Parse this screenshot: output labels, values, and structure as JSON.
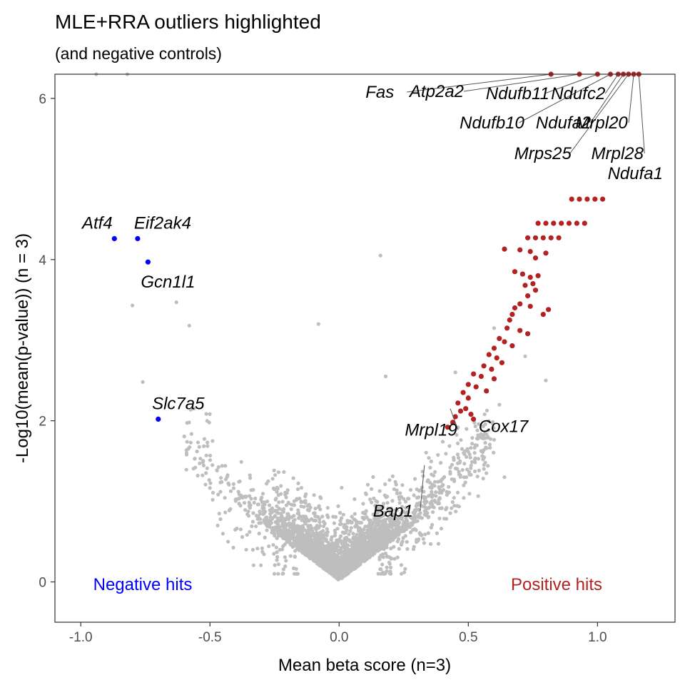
{
  "chart_data": {
    "type": "scatter",
    "title": "MLE+RRA outliers highlighted",
    "subtitle": "(and negative controls)",
    "xlabel": "Mean beta score (n=3)",
    "ylabel": "-Log10(mean(p-value)) (n = 3)",
    "xlim": [
      -1.1,
      1.3
    ],
    "ylim": [
      -0.5,
      6.3
    ],
    "x_ticks": [
      -1.0,
      -0.5,
      0.0,
      0.5,
      1.0
    ],
    "x_tick_labels": [
      "-1.0",
      "-0.5",
      "0.0",
      "0.5",
      "1.0"
    ],
    "y_ticks": [
      0,
      2,
      4,
      6
    ],
    "y_tick_labels": [
      "0",
      "2",
      "4",
      "6"
    ],
    "grid": false,
    "colors": {
      "background_points": "#bebebe",
      "positive": "#b22222",
      "negative": "#0000ff",
      "label_line": "#555555"
    },
    "region_labels": [
      {
        "text": "Negative hits",
        "color": "#0000ff"
      },
      {
        "text": "Positive hits",
        "color": "#b22222"
      }
    ],
    "highlighted_negative": [
      {
        "gene": "Atf4",
        "x": -0.87,
        "y": 4.26
      },
      {
        "gene": "Eif2ak4",
        "x": -0.78,
        "y": 4.26
      },
      {
        "gene": "Gcn1l1",
        "x": -0.74,
        "y": 3.97
      },
      {
        "gene": "Slc7a5",
        "x": -0.7,
        "y": 2.02
      }
    ],
    "labeled_positive": [
      {
        "gene": "Fas",
        "x": 0.82,
        "y": 6.3
      },
      {
        "gene": "Atp2a2",
        "x": 0.93,
        "y": 6.3
      },
      {
        "gene": "Ndufb11",
        "x": 1.0,
        "y": 6.3
      },
      {
        "gene": "Ndufc2",
        "x": 1.08,
        "y": 6.3
      },
      {
        "gene": "Ndufb10",
        "x": 1.05,
        "y": 6.3
      },
      {
        "gene": "Ndufa2",
        "x": 1.1,
        "y": 6.3
      },
      {
        "gene": "Mrpl20",
        "x": 1.14,
        "y": 6.3
      },
      {
        "gene": "Mrps25",
        "x": 1.12,
        "y": 6.3
      },
      {
        "gene": "Mrpl28",
        "x": 1.16,
        "y": 6.3
      },
      {
        "gene": "Ndufa1",
        "x": 1.16,
        "y": 4.75
      },
      {
        "gene": "Mrpl19",
        "x": 0.43,
        "y": 2.15
      },
      {
        "gene": "Cox17",
        "x": 0.52,
        "y": 2.02
      },
      {
        "gene": "Bap1",
        "x": 0.33,
        "y": 1.45
      }
    ],
    "positive_hits": [
      [
        1.16,
        6.3
      ],
      [
        1.14,
        6.3
      ],
      [
        1.12,
        6.3
      ],
      [
        1.1,
        6.3
      ],
      [
        1.08,
        6.3
      ],
      [
        1.05,
        6.3
      ],
      [
        1.0,
        6.3
      ],
      [
        0.93,
        6.3
      ],
      [
        0.82,
        6.3
      ],
      [
        0.9,
        4.75
      ],
      [
        0.93,
        4.75
      ],
      [
        0.96,
        4.75
      ],
      [
        0.99,
        4.75
      ],
      [
        1.02,
        4.75
      ],
      [
        0.77,
        4.45
      ],
      [
        0.8,
        4.45
      ],
      [
        0.83,
        4.45
      ],
      [
        0.86,
        4.45
      ],
      [
        0.89,
        4.45
      ],
      [
        0.92,
        4.45
      ],
      [
        0.95,
        4.45
      ],
      [
        0.73,
        4.27
      ],
      [
        0.76,
        4.27
      ],
      [
        0.79,
        4.27
      ],
      [
        0.82,
        4.27
      ],
      [
        0.85,
        4.27
      ],
      [
        0.64,
        4.13
      ],
      [
        0.7,
        4.12
      ],
      [
        0.74,
        4.1
      ],
      [
        0.76,
        4.02
      ],
      [
        0.8,
        4.08
      ],
      [
        0.68,
        3.85
      ],
      [
        0.71,
        3.82
      ],
      [
        0.74,
        3.78
      ],
      [
        0.77,
        3.8
      ],
      [
        0.75,
        3.7
      ],
      [
        0.72,
        3.68
      ],
      [
        0.76,
        3.62
      ],
      [
        0.73,
        3.55
      ],
      [
        0.7,
        3.45
      ],
      [
        0.68,
        3.4
      ],
      [
        0.74,
        3.42
      ],
      [
        0.79,
        3.32
      ],
      [
        0.81,
        3.38
      ],
      [
        0.67,
        3.32
      ],
      [
        0.66,
        3.25
      ],
      [
        0.65,
        3.15
      ],
      [
        0.7,
        3.12
      ],
      [
        0.73,
        3.08
      ],
      [
        0.62,
        3.02
      ],
      [
        0.64,
        2.98
      ],
      [
        0.67,
        2.93
      ],
      [
        0.6,
        2.9
      ],
      [
        0.58,
        2.82
      ],
      [
        0.61,
        2.78
      ],
      [
        0.63,
        2.72
      ],
      [
        0.56,
        2.68
      ],
      [
        0.59,
        2.64
      ],
      [
        0.52,
        2.58
      ],
      [
        0.55,
        2.55
      ],
      [
        0.6,
        2.52
      ],
      [
        0.5,
        2.45
      ],
      [
        0.53,
        2.42
      ],
      [
        0.57,
        2.37
      ],
      [
        0.48,
        2.35
      ],
      [
        0.5,
        2.28
      ],
      [
        0.46,
        2.22
      ],
      [
        0.47,
        2.12
      ],
      [
        0.45,
        2.05
      ],
      [
        0.49,
        2.15
      ],
      [
        0.51,
        2.08
      ],
      [
        0.44,
        1.98
      ],
      [
        0.42,
        1.92
      ],
      [
        0.52,
        2.02
      ]
    ]
  }
}
